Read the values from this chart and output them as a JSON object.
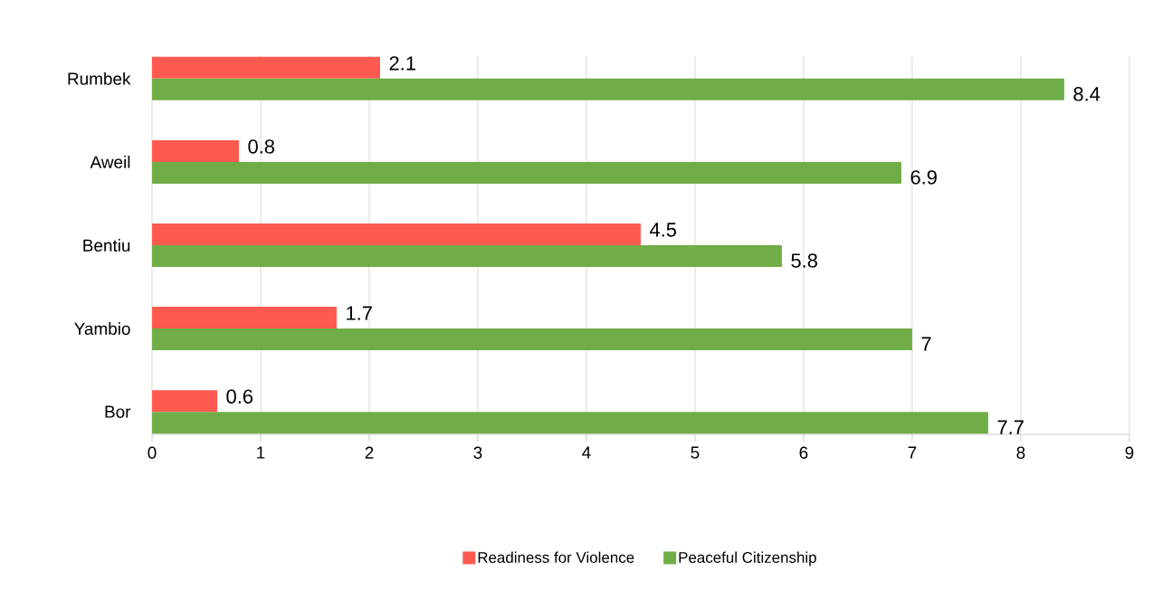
{
  "chart_data": {
    "type": "bar",
    "orientation": "horizontal",
    "categories": [
      "Rumbek",
      "Aweil",
      "Bentiu",
      "Yambio",
      "Bor"
    ],
    "series": [
      {
        "name": "Readiness for Violence",
        "color": "#ff5a50",
        "values": [
          2.1,
          0.8,
          4.5,
          1.7,
          0.6
        ]
      },
      {
        "name": "Peaceful Citizenship",
        "color": "#70ad47",
        "values": [
          8.4,
          6.9,
          5.8,
          7,
          7.7
        ]
      }
    ],
    "xlim": [
      0,
      9
    ],
    "xticks": [
      0,
      1,
      2,
      3,
      4,
      5,
      6,
      7,
      8,
      9
    ],
    "grid": "x",
    "legend": "bottom",
    "data_labels": true
  }
}
